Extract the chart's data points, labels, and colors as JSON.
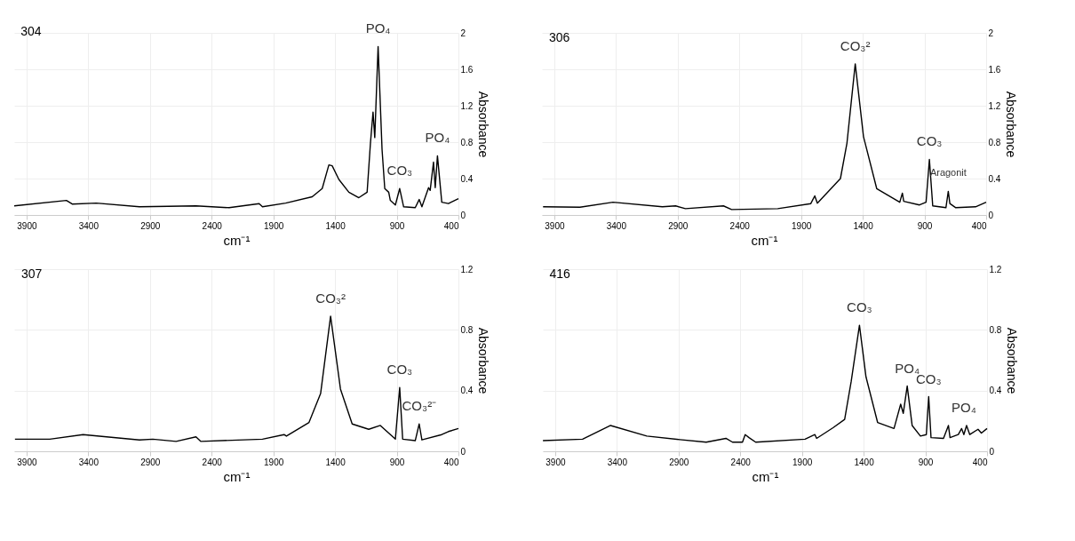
{
  "chart_data": [
    {
      "type": "line",
      "title": "304",
      "xlabel": "cm⁻¹",
      "ylabel": "Absorbance",
      "xlim": [
        4000,
        400
      ],
      "xticks": [
        3900,
        3400,
        2900,
        2400,
        1900,
        1400,
        900,
        400
      ],
      "ylim": [
        0,
        2
      ],
      "yticks": [
        0,
        0.4,
        0.8,
        1.2,
        1.6,
        2
      ],
      "grid": true,
      "x": [
        4000,
        3577,
        3530,
        3335,
        2985,
        2527,
        2258,
        2015,
        1988,
        1800,
        1585,
        1504,
        1450,
        1423,
        1369,
        1288,
        1207,
        1140,
        1113,
        1092,
        1078,
        1051,
        1019,
        997,
        965,
        952,
        911,
        876,
        844,
        750,
        718,
        696,
        642,
        629,
        602,
        588,
        570,
        535,
        481,
        400
      ],
      "series": [
        {
          "color": "#000000",
          "values": [
            0.1,
            0.16,
            0.12,
            0.13,
            0.09,
            0.1,
            0.08,
            0.125,
            0.09,
            0.13,
            0.2,
            0.29,
            0.55,
            0.54,
            0.39,
            0.25,
            0.19,
            0.25,
            0.79,
            1.13,
            0.85,
            1.85,
            0.72,
            0.29,
            0.25,
            0.16,
            0.11,
            0.29,
            0.09,
            0.08,
            0.17,
            0.09,
            0.3,
            0.27,
            0.58,
            0.3,
            0.65,
            0.14,
            0.125,
            0.18
          ]
        }
      ],
      "annotations": [
        {
          "text": "PO₄",
          "x": 1051,
          "y": 1.85
        },
        {
          "text": "PO₄",
          "x": 570,
          "y": 0.65
        },
        {
          "text": "CO₃",
          "x": 876,
          "y": 0.29
        }
      ]
    },
    {
      "type": "line",
      "title": "306",
      "xlabel": "cm⁻¹",
      "ylabel": "Absorbance",
      "xlim": [
        4000,
        400
      ],
      "xticks": [
        3900,
        3400,
        2900,
        2400,
        1900,
        1400,
        900,
        400
      ],
      "ylim": [
        0,
        2
      ],
      "yticks": [
        0,
        0.4,
        0.8,
        1.2,
        1.6,
        2
      ],
      "grid": true,
      "x": [
        3991,
        3692,
        3424,
        3024,
        2917,
        2837,
        2529,
        2463,
        2089,
        1821,
        1789,
        1768,
        1581,
        1528,
        1461,
        1394,
        1287,
        1100,
        1079,
        1068,
        940,
        887,
        860,
        833,
        726,
        707,
        694,
        646,
        486,
        400
      ],
      "series": [
        {
          "color": "#000000",
          "values": [
            0.09,
            0.085,
            0.14,
            0.09,
            0.1,
            0.07,
            0.1,
            0.06,
            0.07,
            0.125,
            0.21,
            0.13,
            0.4,
            0.79,
            1.66,
            0.86,
            0.29,
            0.14,
            0.24,
            0.15,
            0.11,
            0.14,
            0.61,
            0.1,
            0.08,
            0.26,
            0.125,
            0.08,
            0.09,
            0.14
          ]
        }
      ],
      "annotations": [
        {
          "text": "CO₃²",
          "x": 1461,
          "y": 1.66
        },
        {
          "text": "CO₃",
          "x": 860,
          "y": 0.61
        },
        {
          "text": "Aragonit",
          "x": 707,
          "y": 0.26
        }
      ]
    },
    {
      "type": "line",
      "title": "307",
      "xlabel": "cm⁻¹",
      "ylabel": "Absorbance",
      "xlim": [
        4000,
        400
      ],
      "xticks": [
        3900,
        3400,
        2900,
        2400,
        1900,
        1400,
        900,
        400
      ],
      "ylim": [
        0,
        1.2
      ],
      "yticks": [
        0,
        0.4,
        0.8,
        1.2
      ],
      "grid": true,
      "x": [
        3994,
        3712,
        3442,
        2985,
        2877,
        2688,
        2527,
        2487,
        1988,
        1813,
        1794,
        1611,
        1517,
        1436,
        1356,
        1261,
        1127,
        1033,
        911,
        876,
        852,
        750,
        718,
        696,
        535,
        481,
        400
      ],
      "series": [
        {
          "color": "#000000",
          "values": [
            0.08,
            0.08,
            0.11,
            0.075,
            0.08,
            0.065,
            0.095,
            0.065,
            0.08,
            0.11,
            0.1,
            0.19,
            0.38,
            0.89,
            0.41,
            0.18,
            0.145,
            0.17,
            0.08,
            0.42,
            0.08,
            0.07,
            0.18,
            0.075,
            0.11,
            0.13,
            0.15
          ]
        }
      ],
      "annotations": [
        {
          "text": "CO₃²",
          "x": 1436,
          "y": 0.89
        },
        {
          "text": "CO₃",
          "x": 876,
          "y": 0.42
        },
        {
          "text": "CO₃²⁻",
          "x": 718,
          "y": 0.18
        }
      ]
    },
    {
      "type": "line",
      "title": "416",
      "xlabel": "cm⁻¹",
      "ylabel": "Absorbance",
      "xlim": [
        4000,
        400
      ],
      "xticks": [
        3900,
        3400,
        2900,
        2400,
        1900,
        1400,
        900,
        400
      ],
      "ylim": [
        0,
        1.2
      ],
      "yticks": [
        0,
        0.4,
        0.8,
        1.2
      ],
      "grid": true,
      "x": [
        3999,
        3678,
        3451,
        3157,
        2890,
        2676,
        2516,
        2463,
        2382,
        2360,
        2329,
        2275,
        1875,
        1795,
        1781,
        1648,
        1554,
        1501,
        1434,
        1381,
        1287,
        1154,
        1100,
        1079,
        1047,
        1007,
        940,
        892,
        873,
        854,
        753,
        713,
        700,
        633,
        606,
        588,
        566,
        540,
        473,
        446,
        400
      ],
      "series": [
        {
          "color": "#000000",
          "values": [
            0.07,
            0.08,
            0.17,
            0.1,
            0.077,
            0.06,
            0.085,
            0.06,
            0.06,
            0.11,
            0.09,
            0.06,
            0.08,
            0.11,
            0.085,
            0.155,
            0.21,
            0.46,
            0.83,
            0.49,
            0.19,
            0.15,
            0.31,
            0.25,
            0.43,
            0.17,
            0.1,
            0.11,
            0.36,
            0.09,
            0.085,
            0.17,
            0.09,
            0.11,
            0.15,
            0.11,
            0.17,
            0.11,
            0.145,
            0.12,
            0.15
          ]
        }
      ],
      "annotations": [
        {
          "text": "CO₃",
          "x": 1434,
          "y": 0.83
        },
        {
          "text": "PO₄",
          "x": 1047,
          "y": 0.43
        },
        {
          "text": "CO₃",
          "x": 873,
          "y": 0.36
        },
        {
          "text": "PO₄",
          "x": 588,
          "y": 0.17
        }
      ]
    }
  ]
}
